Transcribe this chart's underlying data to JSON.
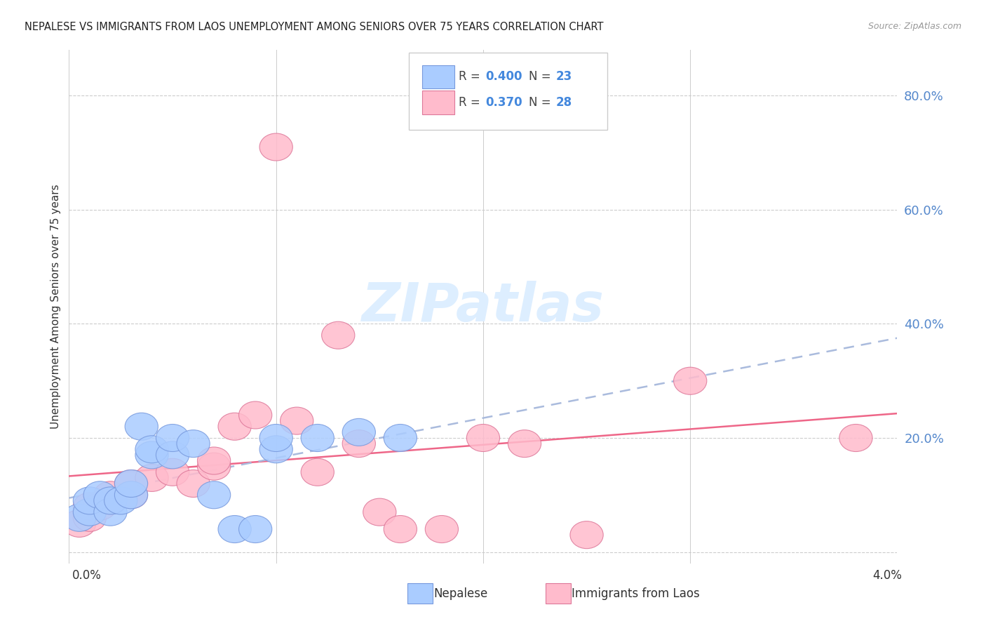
{
  "title": "NEPALESE VS IMMIGRANTS FROM LAOS UNEMPLOYMENT AMONG SENIORS OVER 75 YEARS CORRELATION CHART",
  "source": "Source: ZipAtlas.com",
  "ylabel": "Unemployment Among Seniors over 75 years",
  "legend_nepalese_R": "0.400",
  "legend_nepalese_N": "23",
  "legend_laos_R": "0.370",
  "legend_laos_N": "28",
  "nepalese_color": "#aaccff",
  "nepalese_edge_color": "#7799dd",
  "nepalese_line_color": "#99aadd",
  "laos_color": "#ffbbcc",
  "laos_edge_color": "#dd7799",
  "laos_line_color": "#ee6688",
  "watermark_color": "#ddeeff",
  "right_tick_color": "#5588cc",
  "ytick_vals": [
    0.0,
    0.2,
    0.4,
    0.6,
    0.8
  ],
  "ytick_labels": [
    "",
    "20.0%",
    "40.0%",
    "60.0%",
    "80.0%"
  ],
  "xlim": [
    0.0,
    0.04
  ],
  "ylim": [
    -0.02,
    0.88
  ],
  "nepalese_x": [
    0.0005,
    0.001,
    0.001,
    0.0015,
    0.002,
    0.002,
    0.0025,
    0.003,
    0.003,
    0.0035,
    0.004,
    0.004,
    0.005,
    0.005,
    0.006,
    0.007,
    0.008,
    0.009,
    0.01,
    0.01,
    0.012,
    0.014,
    0.016
  ],
  "nepalese_y": [
    0.06,
    0.07,
    0.09,
    0.1,
    0.07,
    0.09,
    0.09,
    0.1,
    0.12,
    0.22,
    0.17,
    0.18,
    0.17,
    0.2,
    0.19,
    0.1,
    0.04,
    0.04,
    0.18,
    0.2,
    0.2,
    0.21,
    0.2
  ],
  "laos_x": [
    0.0005,
    0.001,
    0.001,
    0.0015,
    0.002,
    0.002,
    0.003,
    0.003,
    0.004,
    0.005,
    0.006,
    0.007,
    0.007,
    0.008,
    0.009,
    0.01,
    0.011,
    0.012,
    0.013,
    0.014,
    0.015,
    0.016,
    0.018,
    0.02,
    0.022,
    0.025,
    0.03,
    0.038
  ],
  "laos_y": [
    0.05,
    0.06,
    0.08,
    0.08,
    0.09,
    0.1,
    0.1,
    0.12,
    0.13,
    0.14,
    0.12,
    0.15,
    0.16,
    0.22,
    0.24,
    0.71,
    0.23,
    0.14,
    0.38,
    0.19,
    0.07,
    0.04,
    0.04,
    0.2,
    0.19,
    0.03,
    0.3,
    0.2
  ]
}
